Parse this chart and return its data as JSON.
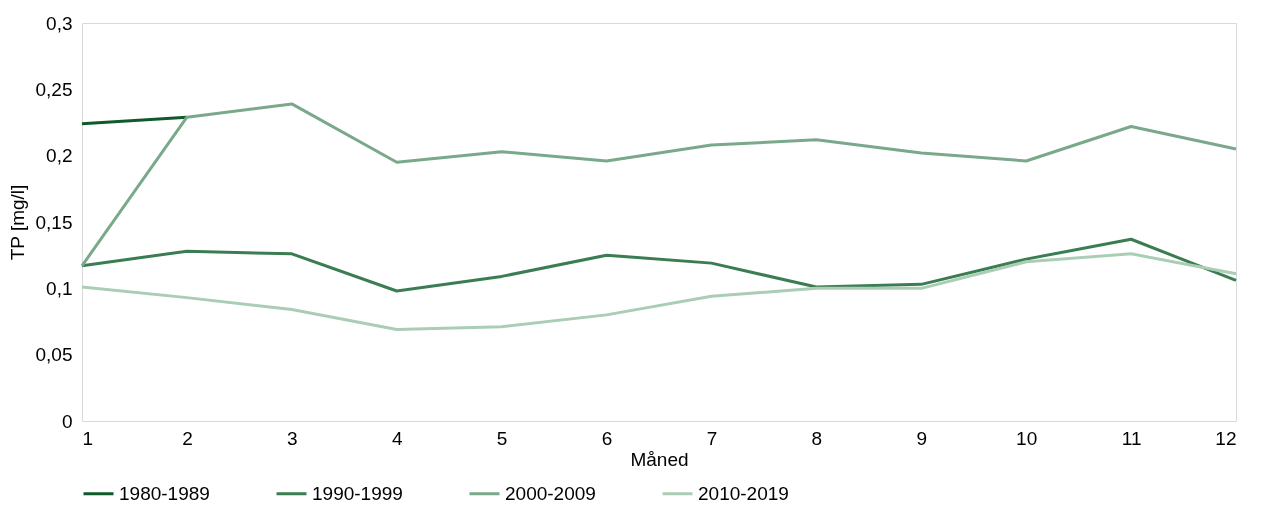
{
  "chart_data": {
    "type": "line",
    "xlabel": "Måned",
    "ylabel": "TP [mg/l]",
    "x": [
      1,
      2,
      3,
      4,
      5,
      6,
      7,
      8,
      9,
      10,
      11,
      12
    ],
    "xlim": [
      1,
      12
    ],
    "xticks": [
      1,
      2,
      3,
      4,
      5,
      6,
      7,
      8,
      9,
      10,
      11,
      12
    ],
    "ylim": [
      0,
      0.3
    ],
    "yticks": [
      0,
      {
        "value": 0.05,
        "label": "0,05"
      },
      {
        "value": 0.1,
        "label": "0,1"
      },
      {
        "value": 0.15,
        "label": "0,15"
      },
      {
        "value": 0.2,
        "label": "0,2"
      },
      {
        "value": 0.25,
        "label": "0,25"
      },
      {
        "value": 0.3,
        "label": "0,3"
      }
    ],
    "grid": false,
    "legend": "bottom",
    "marker": "none",
    "line_style": "solid",
    "series": [
      {
        "name": "1980-1989",
        "color": "#0f5a2b",
        "values": [
          0.224,
          0.229,
          null,
          null,
          null,
          null,
          null,
          null,
          null,
          null,
          null,
          null
        ]
      },
      {
        "name": "1990-1999",
        "color": "#3b7d52",
        "values": [
          0.117,
          0.128,
          0.126,
          0.098,
          0.109,
          0.125,
          0.119,
          0.101,
          0.103,
          0.122,
          0.137,
          0.106
        ]
      },
      {
        "name": "2000-2009",
        "color": "#7aa88a",
        "values": [
          0.117,
          0.229,
          0.239,
          0.195,
          0.203,
          0.196,
          0.208,
          0.212,
          0.202,
          0.196,
          0.222,
          0.205
        ]
      },
      {
        "name": "2010-2019",
        "color": "#abcdb5",
        "values": [
          0.101,
          0.093,
          0.084,
          0.069,
          0.071,
          0.08,
          0.094,
          0.1,
          0.1,
          0.12,
          0.126,
          0.111
        ]
      }
    ]
  }
}
